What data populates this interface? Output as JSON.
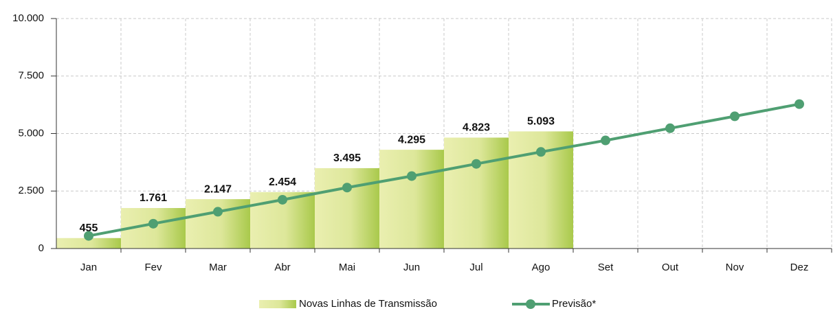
{
  "chart_data": {
    "type": "bar+line",
    "categories": [
      "Jan",
      "Fev",
      "Mar",
      "Abr",
      "Mai",
      "Jun",
      "Jul",
      "Ago",
      "Set",
      "Out",
      "Nov",
      "Dez"
    ],
    "series": [
      {
        "name": "Novas Linhas de Transmissão",
        "type": "bar",
        "color": "#a9c94b",
        "values": [
          455,
          1761,
          2147,
          2454,
          3495,
          4295,
          4823,
          5093,
          null,
          null,
          null,
          null
        ],
        "value_labels": [
          "455",
          "1.761",
          "2.147",
          "2.454",
          "3.495",
          "4.295",
          "4.823",
          "5.093",
          null,
          null,
          null,
          null
        ]
      },
      {
        "name": "Previsão*",
        "type": "line",
        "color": "#4f9f72",
        "values": [
          550,
          1080,
          1600,
          2120,
          2650,
          3150,
          3680,
          4200,
          4700,
          5230,
          5750,
          6280
        ]
      }
    ],
    "ylim": [
      0,
      10000
    ],
    "yticks": [
      0,
      {
        "value": 2500,
        "label": "2.500"
      },
      {
        "value": 5000,
        "label": "5.000"
      },
      {
        "value": 7500,
        "label": "7.500"
      },
      {
        "value": 10000,
        "label": "10.000"
      }
    ],
    "grid": true
  }
}
